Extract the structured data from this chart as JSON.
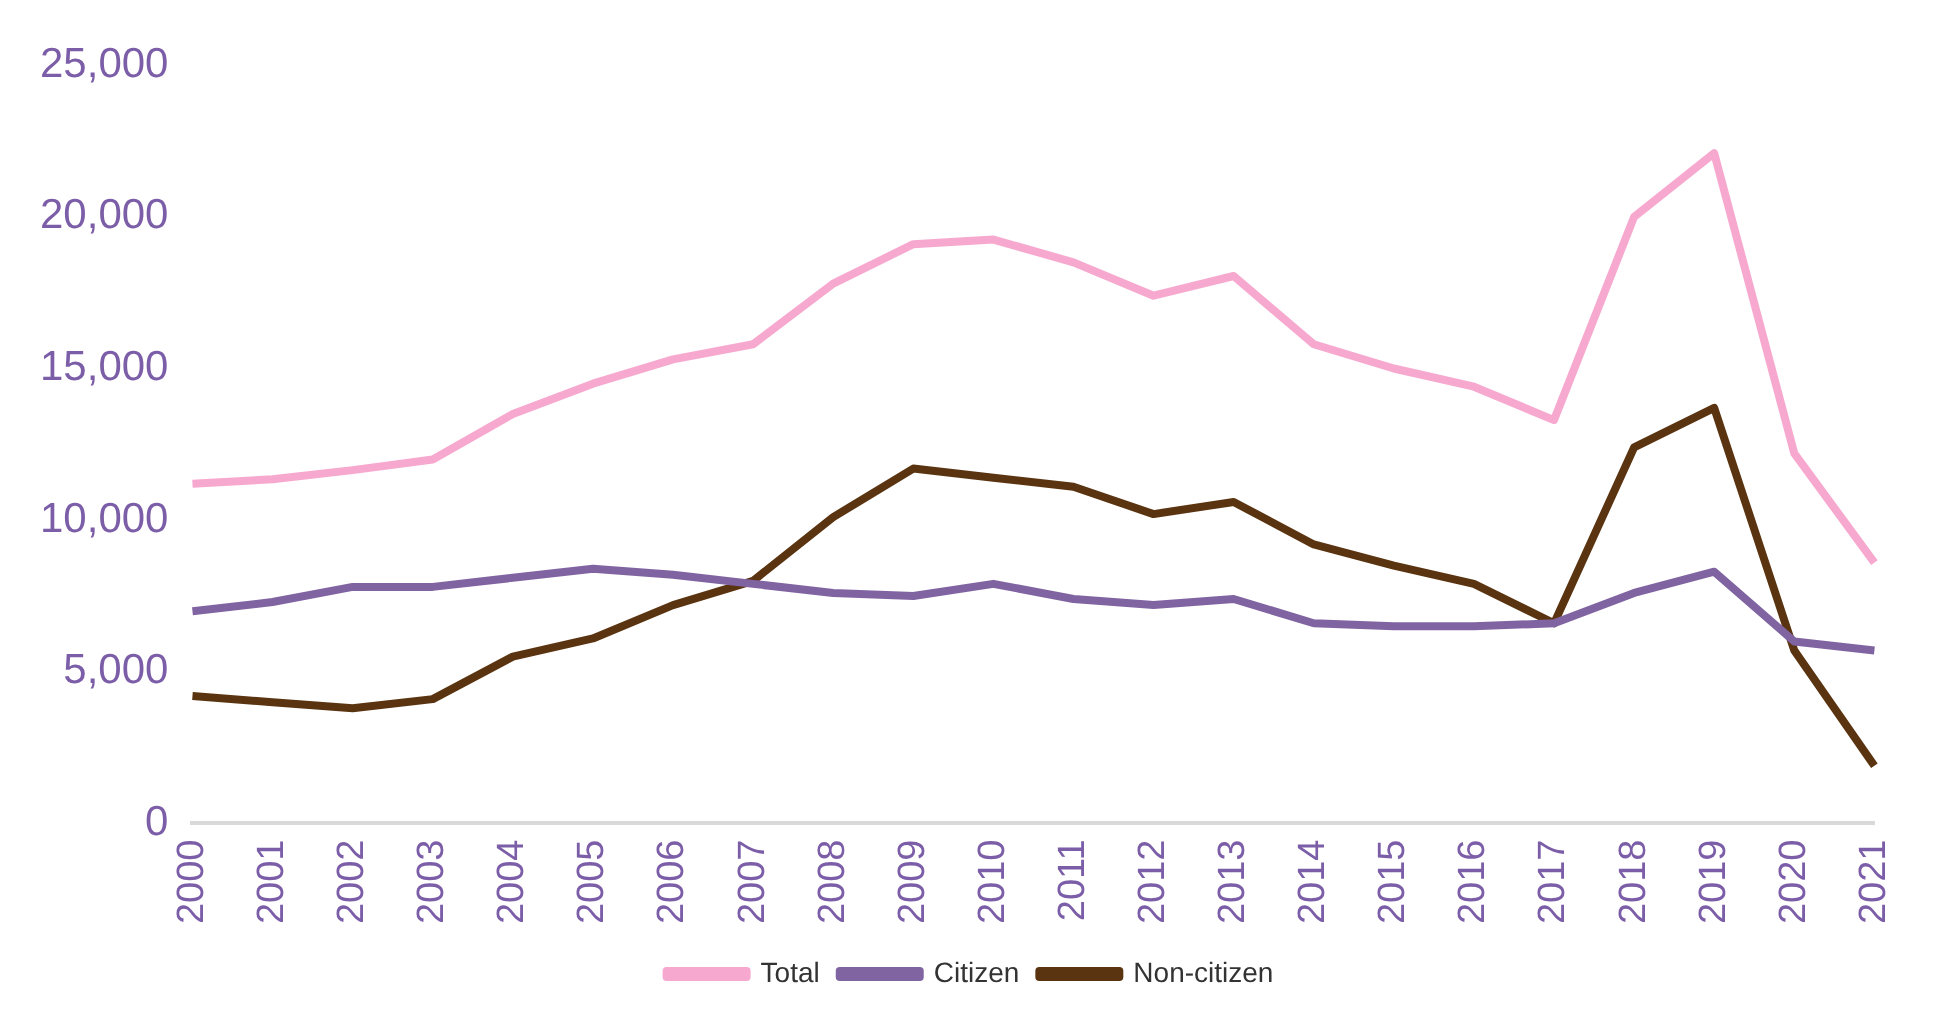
{
  "chart_data": {
    "type": "line",
    "categories": [
      "2000",
      "2001",
      "2002",
      "2003",
      "2004",
      "2005",
      "2006",
      "2007",
      "2008",
      "2009",
      "2010",
      "2011",
      "2012",
      "2013",
      "2014",
      "2015",
      "2016",
      "2017",
      "2018",
      "2019",
      "2020",
      "2021"
    ],
    "series": [
      {
        "name": "Total",
        "color": "#f7a8cf",
        "values": [
          11200,
          11350,
          11650,
          12000,
          13500,
          14500,
          15300,
          15800,
          17800,
          19100,
          19250,
          18500,
          17400,
          18050,
          15800,
          15000,
          14400,
          13300,
          20000,
          22100,
          12200,
          8600
        ]
      },
      {
        "name": "Citizen",
        "color": "#8064a2",
        "values": [
          7000,
          7300,
          7800,
          7800,
          8100,
          8400,
          8200,
          7900,
          7600,
          7500,
          7900,
          7400,
          7200,
          7400,
          6600,
          6500,
          6500,
          6600,
          7600,
          8300,
          6000,
          5700
        ]
      },
      {
        "name": "Non-citizen",
        "color": "#5a3410",
        "values": [
          4200,
          4000,
          3800,
          4100,
          5500,
          6100,
          7200,
          8000,
          10100,
          11700,
          11400,
          11100,
          10200,
          10600,
          9200,
          8500,
          7900,
          6600,
          12400,
          13700,
          5700,
          1900
        ]
      }
    ],
    "ylim": [
      0,
      25000
    ],
    "yticks": [
      0,
      {
        "value": 5000,
        "label": "5,000"
      },
      {
        "value": 10000,
        "label": "10,000"
      },
      {
        "value": 15000,
        "label": "15,000"
      },
      {
        "value": 20000,
        "label": "20,000"
      },
      {
        "value": 25000,
        "label": "25,000"
      }
    ],
    "grid": false,
    "legend": "bottom",
    "marker": "none",
    "line_style": "solid"
  }
}
